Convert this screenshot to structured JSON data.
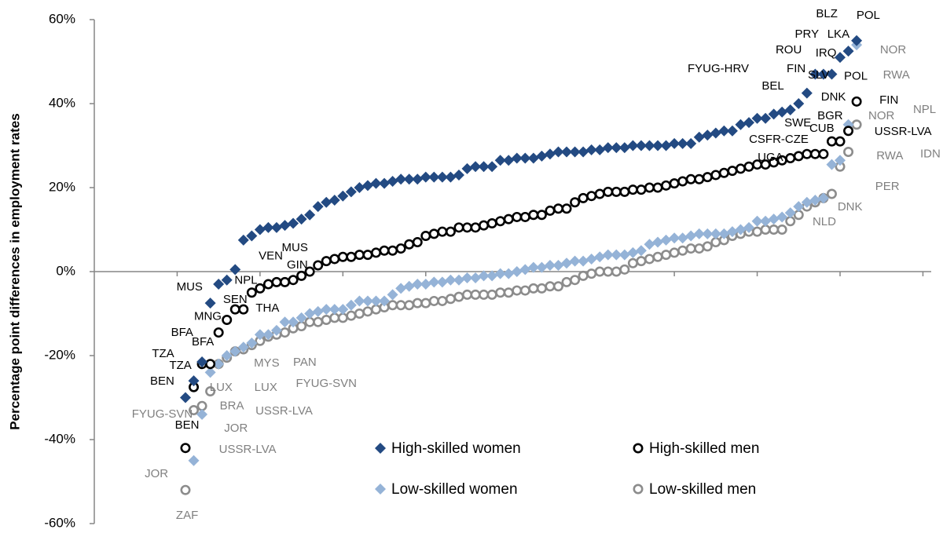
{
  "chart_data": {
    "type": "scatter",
    "y_axis_label": "Percentage point differences in employment rates",
    "xlim": [
      0,
      101
    ],
    "xticks": [
      10,
      20,
      30,
      40,
      50,
      60,
      70,
      80,
      90,
      100
    ],
    "ylim": [
      -60,
      60
    ],
    "yticks": [
      {
        "value": 60,
        "label": "60%"
      },
      {
        "value": 40,
        "label": "40%"
      },
      {
        "value": 20,
        "label": "20%"
      },
      {
        "value": 0,
        "label": "0%"
      },
      {
        "value": -20,
        "label": "-20%"
      },
      {
        "value": -40,
        "label": "-40%"
      },
      {
        "value": -60,
        "label": "-60%"
      }
    ],
    "legend": "lower right",
    "x": [
      11,
      12,
      13,
      14,
      15,
      16,
      17,
      18,
      19,
      20,
      21,
      22,
      23,
      24,
      25,
      26,
      27,
      28,
      29,
      30,
      31,
      32,
      33,
      34,
      35,
      36,
      37,
      38,
      39,
      40,
      41,
      42,
      43,
      44,
      45,
      46,
      47,
      48,
      49,
      50,
      51,
      52,
      53,
      54,
      55,
      56,
      57,
      58,
      59,
      60,
      61,
      62,
      63,
      64,
      65,
      66,
      67,
      68,
      69,
      70,
      71,
      72,
      73,
      74,
      75,
      76,
      77,
      78,
      79,
      80,
      81,
      82,
      83,
      84,
      85,
      86,
      87,
      88,
      89,
      90,
      91,
      92
    ],
    "series": [
      {
        "name": "High-skilled women",
        "color": "#234a82",
        "marker": "diamond",
        "values": [
          -30,
          -26,
          -21.5,
          -7.5,
          -3,
          -2,
          0.5,
          7.5,
          8.5,
          10,
          10.5,
          10.5,
          11,
          11.5,
          12.5,
          13.5,
          15.5,
          16.5,
          17,
          18,
          19,
          20,
          20.5,
          21,
          21,
          21.5,
          22,
          22,
          22,
          22.5,
          22.5,
          22.5,
          22.5,
          23,
          24.5,
          25,
          25,
          25,
          26.5,
          26.5,
          27,
          27,
          27,
          27.5,
          28,
          28.5,
          28.5,
          28.5,
          28.5,
          29,
          29,
          29.5,
          29.5,
          29.5,
          30,
          30,
          30,
          30,
          30,
          30.5,
          30.5,
          30.5,
          32,
          32.5,
          33,
          33.5,
          33.5,
          35,
          35.5,
          36.5,
          36.5,
          37.5,
          38,
          38.5,
          40,
          42.5,
          47,
          47,
          47,
          51,
          52.5,
          55
        ]
      },
      {
        "name": "High-skilled men",
        "color": "#000000",
        "marker": "circle",
        "values": [
          -42,
          -27.5,
          -22,
          -22,
          -14.5,
          -11.5,
          -9,
          -9,
          -5,
          -4,
          -3,
          -2.5,
          -2.5,
          -2,
          -1,
          0,
          1.5,
          2.5,
          3,
          3.5,
          3.5,
          4,
          4,
          4.5,
          5,
          5,
          5.5,
          6.5,
          7,
          8.5,
          9,
          9.5,
          9.5,
          10.5,
          10.5,
          10.5,
          11,
          11.5,
          12,
          12.5,
          13,
          13,
          13.5,
          13.5,
          14.5,
          15,
          15,
          16.5,
          17.5,
          18,
          18.5,
          19,
          19,
          19,
          19.5,
          19.5,
          20,
          20,
          20.5,
          21,
          21.5,
          22,
          22,
          22.5,
          23,
          23.5,
          24,
          24.5,
          25,
          25.5,
          25.5,
          26,
          26.5,
          27,
          27.5,
          28,
          28,
          28,
          31,
          31,
          33.5,
          40.5
        ]
      },
      {
        "name": "Low-skilled women",
        "color": "#95b3d7",
        "marker": "diamond",
        "values": [
          null,
          -45,
          -34,
          -24,
          -22,
          -20,
          -19,
          -18,
          -17,
          -15,
          -15,
          -14,
          -12,
          -12,
          -11,
          -10,
          -9.5,
          -9,
          -9,
          -9,
          -8,
          -7,
          -7,
          -7,
          -7,
          -5.5,
          -4,
          -3.5,
          -3,
          -3,
          -2.5,
          -2.5,
          -2,
          -2,
          -1.5,
          -1.5,
          -1,
          -1,
          -0.5,
          -0.5,
          0,
          0.5,
          1,
          1,
          1.5,
          1.5,
          2,
          2.5,
          2.5,
          3,
          3.5,
          4,
          4,
          4,
          4.5,
          5,
          6.5,
          7,
          7.5,
          8,
          8,
          8.5,
          9,
          9,
          9,
          9,
          9.5,
          10,
          10.5,
          12,
          12,
          12.5,
          13,
          14,
          15.5,
          16.5,
          17,
          17.5,
          25.5,
          26.5,
          35,
          54
        ]
      },
      {
        "name": "Low-skilled men",
        "color": "#8c8c8c",
        "marker": "circle",
        "values": [
          -52,
          -33,
          -32,
          -28.5,
          -22,
          -20.5,
          -19,
          -18.5,
          -17.5,
          -16.5,
          -15.5,
          -15,
          -14.5,
          -13.5,
          -13,
          -12,
          -12,
          -11.5,
          -11,
          -11,
          -10.5,
          -10,
          -9.5,
          -9,
          -8.5,
          -8,
          -8,
          -8,
          -7.5,
          -7.5,
          -7,
          -7,
          -6.5,
          -6,
          -5.5,
          -5.5,
          -5.5,
          -5.5,
          -5,
          -5,
          -4.5,
          -4.5,
          -4,
          -4,
          -3.5,
          -3.5,
          -2.5,
          -2,
          -1,
          -0.5,
          0,
          0,
          0,
          0.5,
          2,
          2.5,
          3,
          3.5,
          4,
          4.5,
          5,
          5.5,
          5.5,
          6,
          7,
          7.5,
          8.5,
          9,
          9.5,
          9.5,
          10,
          10,
          10,
          12,
          13.5,
          15.5,
          16.5,
          17.5,
          18.5,
          25,
          28.5,
          35
        ]
      }
    ],
    "annotations": [
      {
        "text": "BLZ",
        "x": 88.4,
        "y": 61.3,
        "color": "#000000"
      },
      {
        "text": "POL",
        "x": 93.4,
        "y": 60.9,
        "color": "#000000"
      },
      {
        "text": "PRY",
        "x": 86.0,
        "y": 56.4,
        "color": "#000000"
      },
      {
        "text": "LKA",
        "x": 89.8,
        "y": 56.4,
        "color": "#000000"
      },
      {
        "text": "ROU",
        "x": 83.8,
        "y": 52.7,
        "color": "#000000"
      },
      {
        "text": "IRQ",
        "x": 88.3,
        "y": 52.0,
        "color": "#000000"
      },
      {
        "text": "FYUG-HRV",
        "x": 75.3,
        "y": 48.2,
        "color": "#000000"
      },
      {
        "text": "FIN",
        "x": 84.7,
        "y": 48.2,
        "color": "#000000"
      },
      {
        "text": "SLV",
        "x": 87.4,
        "y": 46.7,
        "color": "#000000"
      },
      {
        "text": "POL",
        "x": 91.9,
        "y": 46.4,
        "color": "#000000"
      },
      {
        "text": "BEL",
        "x": 81.9,
        "y": 44.1,
        "color": "#000000"
      },
      {
        "text": "DNK",
        "x": 89.2,
        "y": 41.5,
        "color": "#000000"
      },
      {
        "text": "FIN",
        "x": 95.9,
        "y": 40.7,
        "color": "#000000"
      },
      {
        "text": "BGR",
        "x": 88.8,
        "y": 37.0,
        "color": "#000000"
      },
      {
        "text": "SWE",
        "x": 84.9,
        "y": 35.3,
        "color": "#000000"
      },
      {
        "text": "CUB",
        "x": 87.8,
        "y": 34.0,
        "color": "#000000"
      },
      {
        "text": "CSFR-CZE",
        "x": 82.6,
        "y": 31.4,
        "color": "#000000"
      },
      {
        "text": "USSR-LVA",
        "x": 97.6,
        "y": 33.3,
        "color": "#000000"
      },
      {
        "text": "UGA",
        "x": 81.6,
        "y": 27.1,
        "color": "#000000"
      },
      {
        "text": "MUS",
        "x": 24.2,
        "y": 5.6,
        "color": "#000000"
      },
      {
        "text": "VEN",
        "x": 21.3,
        "y": 3.6,
        "color": "#000000"
      },
      {
        "text": "GIN",
        "x": 24.5,
        "y": 1.5,
        "color": "#000000"
      },
      {
        "text": "MUS",
        "x": 11.5,
        "y": -3.7,
        "color": "#000000"
      },
      {
        "text": "NPL",
        "x": 18.3,
        "y": -2.2,
        "color": "#000000"
      },
      {
        "text": "SEN",
        "x": 17.0,
        "y": -6.7,
        "color": "#000000"
      },
      {
        "text": "THA",
        "x": 20.9,
        "y": -8.8,
        "color": "#000000"
      },
      {
        "text": "MNG",
        "x": 13.7,
        "y": -10.8,
        "color": "#000000"
      },
      {
        "text": "BFA",
        "x": 10.6,
        "y": -14.6,
        "color": "#000000"
      },
      {
        "text": "BFA",
        "x": 13.1,
        "y": -16.8,
        "color": "#000000"
      },
      {
        "text": "TZA",
        "x": 8.3,
        "y": -19.6,
        "color": "#000000"
      },
      {
        "text": "TZA",
        "x": 10.4,
        "y": -22.4,
        "color": "#000000"
      },
      {
        "text": "BEN",
        "x": 8.2,
        "y": -26.2,
        "color": "#000000"
      },
      {
        "text": "BEN",
        "x": 11.2,
        "y": -36.6,
        "color": "#000000"
      },
      {
        "text": "NOR",
        "x": 96.4,
        "y": 52.7,
        "color": "#808080"
      },
      {
        "text": "RWA",
        "x": 96.8,
        "y": 46.7,
        "color": "#808080"
      },
      {
        "text": "NPL",
        "x": 100.2,
        "y": 38.5,
        "color": "#808080"
      },
      {
        "text": "NOR",
        "x": 95.0,
        "y": 37.0,
        "color": "#808080"
      },
      {
        "text": "RWA",
        "x": 96.0,
        "y": 27.5,
        "color": "#808080"
      },
      {
        "text": "IDN",
        "x": 100.9,
        "y": 27.9,
        "color": "#808080"
      },
      {
        "text": "PER",
        "x": 95.7,
        "y": 20.2,
        "color": "#808080"
      },
      {
        "text": "DNK",
        "x": 91.2,
        "y": 15.3,
        "color": "#808080"
      },
      {
        "text": "NLD",
        "x": 88.1,
        "y": 11.8,
        "color": "#808080"
      },
      {
        "text": "MYS",
        "x": 20.8,
        "y": -21.9,
        "color": "#808080"
      },
      {
        "text": "PAN",
        "x": 25.4,
        "y": -21.7,
        "color": "#808080"
      },
      {
        "text": "FYUG-SVN",
        "x": 28.0,
        "y": -26.7,
        "color": "#808080"
      },
      {
        "text": "LUX",
        "x": 15.3,
        "y": -27.7,
        "color": "#808080"
      },
      {
        "text": "LUX",
        "x": 20.7,
        "y": -27.7,
        "color": "#808080"
      },
      {
        "text": "FYUG-SVN",
        "x": 8.2,
        "y": -34.0,
        "color": "#808080"
      },
      {
        "text": "BRA",
        "x": 16.6,
        "y": -32.1,
        "color": "#808080"
      },
      {
        "text": "USSR-LVA",
        "x": 22.9,
        "y": -33.3,
        "color": "#808080"
      },
      {
        "text": "JOR",
        "x": 17.1,
        "y": -37.4,
        "color": "#808080"
      },
      {
        "text": "USSR-LVA",
        "x": 18.5,
        "y": -42.4,
        "color": "#808080"
      },
      {
        "text": "JOR",
        "x": 7.5,
        "y": -48.2,
        "color": "#808080"
      },
      {
        "text": "ZAF",
        "x": 11.2,
        "y": -58.1,
        "color": "#808080"
      }
    ]
  }
}
